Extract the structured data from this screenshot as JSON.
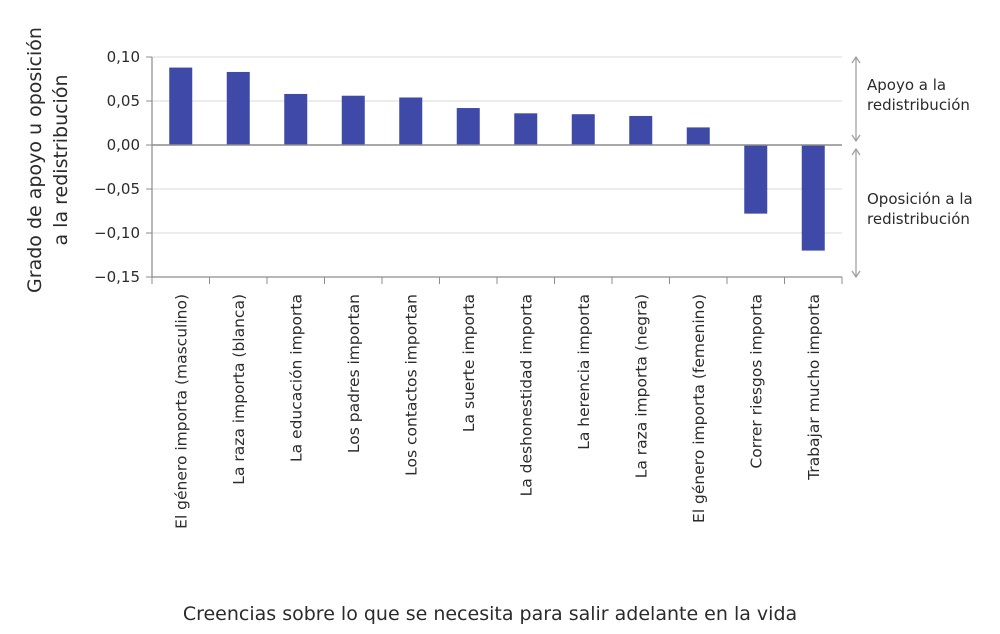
{
  "chart_data": {
    "type": "bar",
    "title": "",
    "ylabel_lines": [
      "Grado de apoyo u oposición",
      "a la redistribución"
    ],
    "xlabel": "Creencias sobre lo que se necesita para salir adelante en la vida",
    "ylim": [
      -0.15,
      0.1
    ],
    "yticks": [
      0.1,
      0.05,
      0.0,
      -0.05,
      -0.1,
      -0.15
    ],
    "ytick_labels": [
      "0,10",
      "0,05",
      "0,00",
      "−0,05",
      "−0,10",
      "−0,15"
    ],
    "grid": true,
    "bar_color": "#3f4aa8",
    "grid_color": "#d9d9d9",
    "axis_color": "#8c8c8c",
    "categories": [
      "El género importa (masculino)",
      "La raza importa (blanca)",
      "La educación importa",
      "Los padres importan",
      "Los contactos importan",
      "La suerte importa",
      "La deshonestidad importa",
      "La herencia importa",
      "La raza importa (negra)",
      "El género importa (femenino)",
      "Correr riesgos importa",
      "Trabajar mucho importa"
    ],
    "values": [
      0.088,
      0.083,
      0.058,
      0.056,
      0.054,
      0.042,
      0.036,
      0.035,
      0.033,
      0.02,
      -0.078,
      -0.12
    ],
    "annotations": [
      {
        "lines": [
          "Apoyo a la",
          "redistribución"
        ],
        "range": [
          0.1,
          0.0
        ]
      },
      {
        "lines": [
          "Oposición a la",
          "redistribución"
        ],
        "range": [
          0.0,
          -0.15
        ]
      }
    ]
  }
}
